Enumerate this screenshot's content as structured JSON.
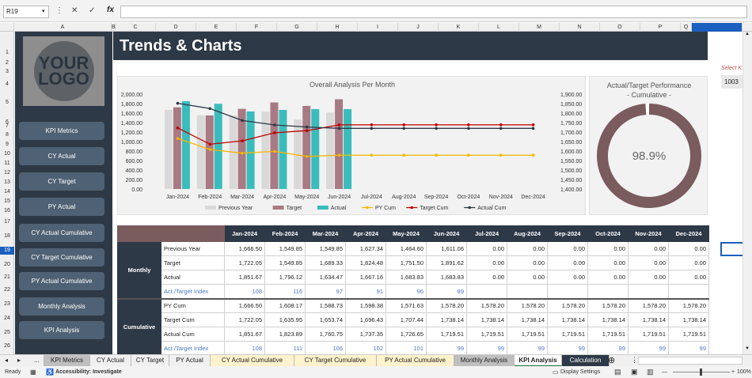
{
  "formula_bar": {
    "cell_ref": "R19",
    "formula": ""
  },
  "columns": [
    "A",
    "B",
    "C",
    "D",
    "E",
    "F",
    "G",
    "H",
    "I",
    "J",
    "K",
    "L",
    "M",
    "N",
    "O",
    "P",
    "Q"
  ],
  "rows": [
    "1",
    "2",
    "3",
    "4",
    "5",
    "6",
    "7",
    "8",
    "9",
    "10",
    "11",
    "12",
    "13",
    "14",
    "15",
    "16",
    "17",
    "18",
    "19",
    "20",
    "21",
    "22",
    "23",
    "24",
    "25",
    "26"
  ],
  "sidebar": {
    "logo_text_1": "YOUR",
    "logo_text_2": "LOGO",
    "buttons": [
      "KPI Metrics",
      "CY Actual",
      "CY Target",
      "PY Actual",
      "CY Actual Cumulative",
      "CY Target Cumulative",
      "PY Actual Cumulative",
      "Monthly Analysis",
      "KPI Analysis"
    ]
  },
  "page_title": "Trends & Charts",
  "select_label": "Select K",
  "select_value": "1003",
  "chart_data": [
    {
      "type": "bar",
      "title": "Overall Analysis Per Month",
      "categories": [
        "Jan-2024",
        "Feb-2024",
        "Mar-2024",
        "Apr-2024",
        "May-2024",
        "Jun-2024",
        "Jul-2024",
        "Aug-2024",
        "Sep-2024",
        "Oct-2024",
        "Nov-2024",
        "Dec-2024"
      ],
      "y_left_ticks": [
        "2,000.00",
        "1,800.00",
        "1,600.00",
        "1,400.00",
        "1,200.00",
        "1,000.00",
        "800.00",
        "600.00",
        "400.00",
        "200.00",
        "0.00"
      ],
      "y_right_ticks": [
        "1,900.00",
        "1,850.00",
        "1,800.00",
        "1,750.00",
        "1,700.00",
        "1,650.00",
        "1,600.00",
        "1,550.00",
        "1,500.00",
        "1,450.00",
        "1,400.00"
      ],
      "ylim_left": [
        0,
        2000
      ],
      "ylim_right": [
        1400,
        1900
      ],
      "series": [
        {
          "name": "Previous Year",
          "kind": "bar",
          "axis": "left",
          "color": "#d9d9d9",
          "values": [
            1666.5,
            1549.85,
            1549.85,
            1627.34,
            1464.6,
            1611.06,
            0,
            0,
            0,
            0,
            0,
            0
          ]
        },
        {
          "name": "Target",
          "kind": "bar",
          "axis": "left",
          "color": "#a87a83",
          "values": [
            1722.05,
            1549.85,
            1689.33,
            1824.48,
            1751.5,
            1891.62,
            0,
            0,
            0,
            0,
            0,
            0
          ]
        },
        {
          "name": "Actual",
          "kind": "bar",
          "axis": "left",
          "color": "#3bbcbc",
          "values": [
            1851.67,
            1796.12,
            1634.47,
            1667.16,
            1683.83,
            1683.83,
            0,
            0,
            0,
            0,
            0,
            0
          ]
        },
        {
          "name": "PY Cum",
          "kind": "line",
          "axis": "right",
          "color": "#f5b800",
          "values": [
            1666.5,
            1608.17,
            1588.73,
            1598.38,
            1571.63,
            1578.2,
            1578.2,
            1578.2,
            1578.2,
            1578.2,
            1578.2,
            1578.2
          ]
        },
        {
          "name": "Target Cum",
          "kind": "line",
          "axis": "right",
          "color": "#c00000",
          "values": [
            1722.05,
            1635.95,
            1653.74,
            1696.43,
            1707.44,
            1738.14,
            1738.14,
            1738.14,
            1738.14,
            1738.14,
            1738.14,
            1738.14
          ]
        },
        {
          "name": "Actual Cum",
          "kind": "line",
          "axis": "right",
          "color": "#2e3947",
          "values": [
            1851.67,
            1823.89,
            1760.75,
            1737.35,
            1726.65,
            1719.51,
            1719.51,
            1719.51,
            1719.51,
            1719.51,
            1719.51,
            1719.51
          ]
        }
      ]
    },
    {
      "type": "pie",
      "title": "Actual/Target Performance",
      "subtitle": "- Cumulative -",
      "values": [
        98.9,
        1.1
      ],
      "label": "98.9%",
      "colors": [
        "#7a5b5e",
        "#ffffff"
      ]
    }
  ],
  "table": {
    "months": [
      "Jan-2024",
      "Feb-2024",
      "Mar-2024",
      "Apr-2024",
      "May-2024",
      "Jun-2024",
      "Jul-2024",
      "Aug-2024",
      "Sep-2024",
      "Oct-2024",
      "Nov-2024",
      "Dec-2024"
    ],
    "groups": [
      {
        "name": "Monthly",
        "rows": [
          {
            "label": "Previous Year",
            "values": [
              "1,666.50",
              "1,549.85",
              "1,549.85",
              "1,627.34",
              "1,464.60",
              "1,611.06",
              "0.00",
              "0.00",
              "0.00",
              "0.00",
              "0.00",
              "0.00"
            ]
          },
          {
            "label": "Target",
            "values": [
              "1,722.05",
              "1,549.85",
              "1,689.33",
              "1,824.48",
              "1,751.50",
              "1,891.62",
              "0.00",
              "0.00",
              "0.00",
              "0.00",
              "0.00",
              "0.00"
            ]
          },
          {
            "label": "Actual",
            "values": [
              "1,851.67",
              "1,796.12",
              "1,634.47",
              "1,667.16",
              "1,683.83",
              "1,683.83",
              "0.00",
              "0.00",
              "0.00",
              "0.00",
              "0.00",
              "0.00"
            ]
          },
          {
            "label": "Act./Target Index",
            "index": true,
            "values": [
              "108",
              "116",
              "97",
              "91",
              "96",
              "89",
              "",
              "",
              "",
              "",
              "",
              ""
            ]
          }
        ]
      },
      {
        "name": "Cumulative",
        "rows": [
          {
            "label": "PY Cum",
            "values": [
              "1,666.50",
              "1,608.17",
              "1,588.73",
              "1,598.38",
              "1,571.63",
              "1,578.20",
              "1,578.20",
              "1,578.20",
              "1,578.20",
              "1,578.20",
              "1,578.20",
              "1,578.20"
            ]
          },
          {
            "label": "Target Cum",
            "values": [
              "1,722.05",
              "1,635.95",
              "1,653.74",
              "1,696.43",
              "1,707.44",
              "1,738.14",
              "1,738.14",
              "1,738.14",
              "1,738.14",
              "1,738.14",
              "1,738.14",
              "1,738.14"
            ]
          },
          {
            "label": "Actual Cum",
            "values": [
              "1,851.67",
              "1,823.89",
              "1,760.75",
              "1,737.35",
              "1,726.65",
              "1,719.51",
              "1,719.51",
              "1,719.51",
              "1,719.51",
              "1,719.51",
              "1,719.51",
              "1,719.51"
            ]
          },
          {
            "label": "Act./Target Index",
            "index": true,
            "values": [
              "108",
              "111",
              "106",
              "102",
              "101",
              "99",
              "99",
              "99",
              "99",
              "99",
              "99",
              "99"
            ]
          }
        ]
      }
    ]
  },
  "sheet_tabs": [
    {
      "label": "...",
      "color": "#f0f0f0"
    },
    {
      "label": "KPI Metrics",
      "color": "#bfbfbf"
    },
    {
      "label": "CY Actual",
      "color": "#f0f0f0"
    },
    {
      "label": "CY Target",
      "color": "#f0f0f0"
    },
    {
      "label": "PY Actual",
      "color": "#f0f0f0"
    },
    {
      "label": "CY Actual Cumulative",
      "color": "#fff2cc"
    },
    {
      "label": "CY Target Cumulative",
      "color": "#fff2cc"
    },
    {
      "label": "PY Actual Cumulative",
      "color": "#fff2cc"
    },
    {
      "label": "Monthly Analysis",
      "color": "#bfbfbf"
    },
    {
      "label": "KPI Analysis",
      "color": "#ffffff",
      "active": true
    },
    {
      "label": "Calculation",
      "color": "#2e3947",
      "dark": true
    }
  ],
  "status_bar": {
    "ready": "Ready",
    "accessibility": "Accessibility: Investigate",
    "display_settings": "Display Settings",
    "zoom": "100%"
  }
}
